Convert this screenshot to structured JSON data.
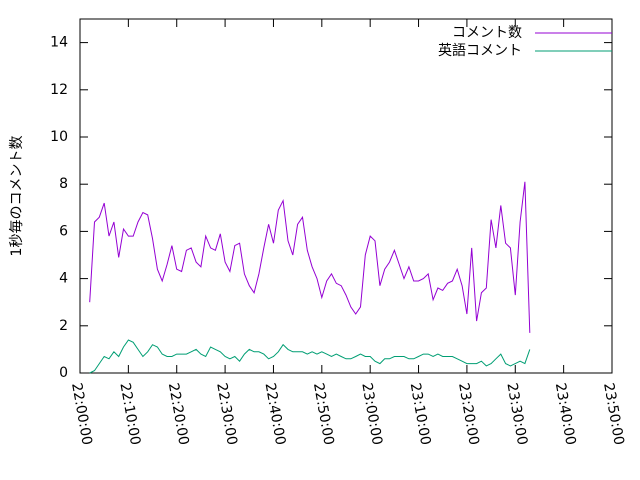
{
  "chart_data": {
    "type": "line",
    "ylabel": "1秒毎のコメント数",
    "x": [
      "22:02:00",
      "22:03:00",
      "22:04:00",
      "22:05:00",
      "22:06:00",
      "22:07:00",
      "22:08:00",
      "22:09:00",
      "22:10:00",
      "22:11:00",
      "22:12:00",
      "22:13:00",
      "22:14:00",
      "22:15:00",
      "22:16:00",
      "22:17:00",
      "22:18:00",
      "22:19:00",
      "22:20:00",
      "22:21:00",
      "22:22:00",
      "22:23:00",
      "22:24:00",
      "22:25:00",
      "22:26:00",
      "22:27:00",
      "22:28:00",
      "22:29:00",
      "22:30:00",
      "22:31:00",
      "22:32:00",
      "22:33:00",
      "22:34:00",
      "22:35:00",
      "22:36:00",
      "22:37:00",
      "22:38:00",
      "22:39:00",
      "22:40:00",
      "22:41:00",
      "22:42:00",
      "22:43:00",
      "22:44:00",
      "22:45:00",
      "22:46:00",
      "22:47:00",
      "22:48:00",
      "22:49:00",
      "22:50:00",
      "22:51:00",
      "22:52:00",
      "22:53:00",
      "22:54:00",
      "22:55:00",
      "22:56:00",
      "22:57:00",
      "22:58:00",
      "22:59:00",
      "23:00:00",
      "23:01:00",
      "23:02:00",
      "23:03:00",
      "23:04:00",
      "23:05:00",
      "23:06:00",
      "23:07:00",
      "23:08:00",
      "23:09:00",
      "23:10:00",
      "23:11:00",
      "23:12:00",
      "23:13:00",
      "23:14:00",
      "23:15:00",
      "23:16:00",
      "23:17:00",
      "23:18:00",
      "23:19:00",
      "23:20:00",
      "23:21:00",
      "23:22:00",
      "23:23:00",
      "23:24:00",
      "23:25:00",
      "23:26:00",
      "23:27:00",
      "23:28:00",
      "23:29:00",
      "23:30:00",
      "23:31:00",
      "23:32:00",
      "23:33:00"
    ],
    "series": [
      {
        "name": "コメント数",
        "color": "#9400d3",
        "values": [
          3.0,
          6.4,
          6.6,
          7.2,
          5.8,
          6.4,
          4.9,
          6.1,
          5.8,
          5.8,
          6.4,
          6.8,
          6.7,
          5.7,
          4.4,
          3.9,
          4.6,
          5.4,
          4.4,
          4.3,
          5.2,
          5.3,
          4.7,
          4.5,
          5.8,
          5.3,
          5.2,
          5.9,
          4.7,
          4.3,
          5.4,
          5.5,
          4.2,
          3.7,
          3.4,
          4.2,
          5.3,
          6.3,
          5.5,
          6.9,
          7.3,
          5.6,
          5.0,
          6.3,
          6.6,
          5.2,
          4.5,
          4.0,
          3.2,
          3.9,
          4.2,
          3.8,
          3.7,
          3.3,
          2.8,
          2.5,
          2.8,
          5.0,
          5.8,
          5.6,
          3.7,
          4.4,
          4.7,
          5.2,
          4.6,
          4.0,
          4.5,
          3.9,
          3.9,
          4.0,
          4.2,
          3.1,
          3.6,
          3.5,
          3.8,
          3.9,
          4.4,
          3.7,
          2.5,
          5.3,
          2.2,
          3.4,
          3.6,
          6.5,
          5.3,
          7.1,
          5.5,
          5.3,
          3.3,
          6.4,
          8.1,
          1.7
        ]
      },
      {
        "name": "英語コメント",
        "color": "#009e73",
        "values": [
          0.0,
          0.1,
          0.4,
          0.7,
          0.6,
          0.9,
          0.7,
          1.1,
          1.4,
          1.3,
          1.0,
          0.7,
          0.9,
          1.2,
          1.1,
          0.8,
          0.7,
          0.7,
          0.8,
          0.8,
          0.8,
          0.9,
          1.0,
          0.8,
          0.7,
          1.1,
          1.0,
          0.9,
          0.7,
          0.6,
          0.7,
          0.5,
          0.8,
          1.0,
          0.9,
          0.9,
          0.8,
          0.6,
          0.7,
          0.9,
          1.2,
          1.0,
          0.9,
          0.9,
          0.9,
          0.8,
          0.9,
          0.8,
          0.9,
          0.8,
          0.7,
          0.8,
          0.7,
          0.6,
          0.6,
          0.7,
          0.8,
          0.7,
          0.7,
          0.5,
          0.4,
          0.6,
          0.6,
          0.7,
          0.7,
          0.7,
          0.6,
          0.6,
          0.7,
          0.8,
          0.8,
          0.7,
          0.8,
          0.7,
          0.7,
          0.7,
          0.6,
          0.5,
          0.4,
          0.4,
          0.4,
          0.5,
          0.3,
          0.4,
          0.6,
          0.8,
          0.4,
          0.3,
          0.4,
          0.5,
          0.4,
          1.0
        ]
      }
    ],
    "xlim": [
      "22:00:00",
      "23:50:00"
    ],
    "xticks": [
      "22:00:00",
      "22:10:00",
      "22:20:00",
      "22:30:00",
      "22:40:00",
      "22:50:00",
      "23:00:00",
      "23:10:00",
      "23:20:00",
      "23:30:00",
      "23:40:00",
      "23:50:00"
    ],
    "ylim": [
      0,
      15
    ],
    "yticks": [
      0,
      2,
      4,
      6,
      8,
      10,
      12,
      14
    ],
    "legend": "top-right"
  }
}
